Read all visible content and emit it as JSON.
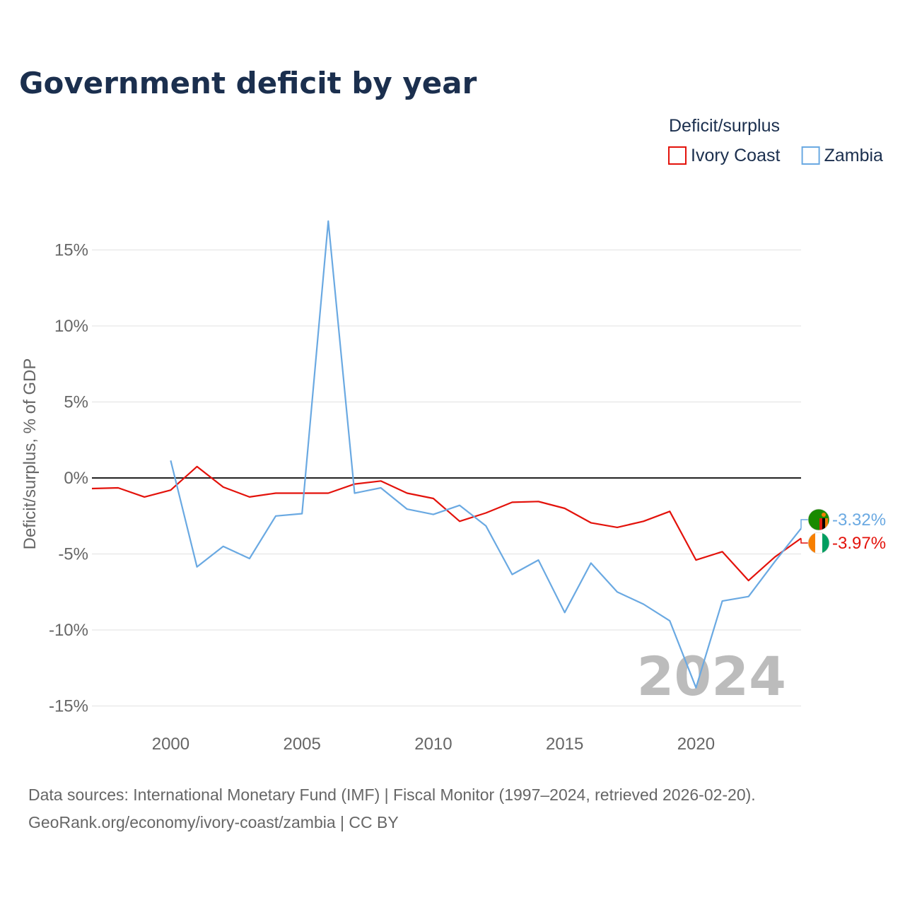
{
  "chart_data": {
    "type": "line",
    "title": "Government deficit by year",
    "legend_title": "Deficit/surplus",
    "legend_position": "top-right",
    "ylabel": "Deficit/surplus, % of GDP",
    "xlabel": "",
    "xlim": [
      1997,
      2024
    ],
    "ylim": [
      -16,
      18
    ],
    "x_ticks": [
      2000,
      2005,
      2010,
      2015,
      2020
    ],
    "x_tick_labels": [
      "2000",
      "2005",
      "2010",
      "2015",
      "2020"
    ],
    "y_ticks": [
      15,
      10,
      5,
      0,
      -5,
      -10,
      -15
    ],
    "y_tick_labels": [
      "15%",
      "10%",
      "5%",
      "0%",
      "-5%",
      "-10%",
      "-15%"
    ],
    "year_watermark": "2024",
    "series": [
      {
        "name": "Ivory Coast",
        "color": "#e3120b",
        "flag": "ivory-coast-flag-icon",
        "end_label": "-3.97%",
        "x": [
          1997,
          1998,
          1999,
          2000,
          2001,
          2002,
          2003,
          2004,
          2005,
          2006,
          2007,
          2008,
          2009,
          2010,
          2011,
          2012,
          2013,
          2014,
          2015,
          2016,
          2017,
          2018,
          2019,
          2020,
          2021,
          2022,
          2023,
          2024
        ],
        "values": [
          -0.7,
          -0.65,
          -1.25,
          -0.8,
          0.75,
          -0.6,
          -1.25,
          -1.0,
          -1.0,
          -1.0,
          -0.4,
          -0.2,
          -1.0,
          -1.35,
          -2.85,
          -2.3,
          -1.6,
          -1.55,
          -2.0,
          -2.95,
          -3.25,
          -2.85,
          -2.2,
          -5.4,
          -4.85,
          -6.75,
          -5.2,
          -3.97
        ]
      },
      {
        "name": "Zambia",
        "color": "#6aa9e2",
        "flag": "zambia-flag-icon",
        "end_label": "-3.32%",
        "x": [
          2000,
          2001,
          2002,
          2003,
          2004,
          2005,
          2006,
          2007,
          2008,
          2009,
          2010,
          2011,
          2012,
          2013,
          2014,
          2015,
          2016,
          2017,
          2018,
          2019,
          2020,
          2021,
          2022,
          2023,
          2024
        ],
        "values": [
          1.15,
          -5.85,
          -4.5,
          -5.3,
          -2.5,
          -2.35,
          16.9,
          -1.0,
          -0.65,
          -2.05,
          -2.4,
          -1.8,
          -3.15,
          -6.35,
          -5.4,
          -8.85,
          -5.6,
          -7.5,
          -8.3,
          -9.4,
          -13.8,
          -8.1,
          -7.8,
          -5.5,
          -3.32
        ]
      }
    ]
  },
  "footer": {
    "line1": "Data sources: International Monetary Fund (IMF) | Fiscal Monitor (1997–2024, retrieved 2026-02-20).",
    "line2": "GeoRank.org/economy/ivory-coast/zambia | CC BY"
  },
  "colors": {
    "title": "#1b2f4e",
    "axis_text": "#666666",
    "grid": "#e6e6e6",
    "zero_line": "#222222",
    "watermark": "#bcbcbc"
  }
}
